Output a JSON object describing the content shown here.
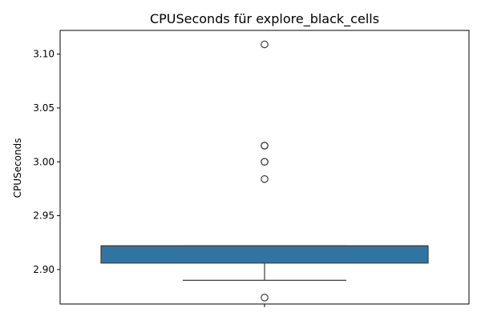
{
  "chart_data": {
    "type": "boxplot",
    "title": "CPUSeconds für explore_black_cells",
    "xlabel": "",
    "ylabel": "CPUSeconds",
    "ylim": [
      2.868,
      3.122
    ],
    "yticks": [
      2.9,
      2.95,
      3.0,
      3.05,
      3.1
    ],
    "ytick_labels": [
      "2.90",
      "2.95",
      "3.00",
      "3.05",
      "3.10"
    ],
    "grid": false,
    "box": {
      "q1": 2.906,
      "median": 2.922,
      "q3": 2.922,
      "whisker_low": 2.89,
      "whisker_high": 2.922,
      "color": "#3274a1",
      "edge_color": "#3d3d3d"
    },
    "outliers": [
      3.109,
      3.015,
      3.015,
      3.0,
      3.0,
      2.984,
      2.874
    ]
  }
}
